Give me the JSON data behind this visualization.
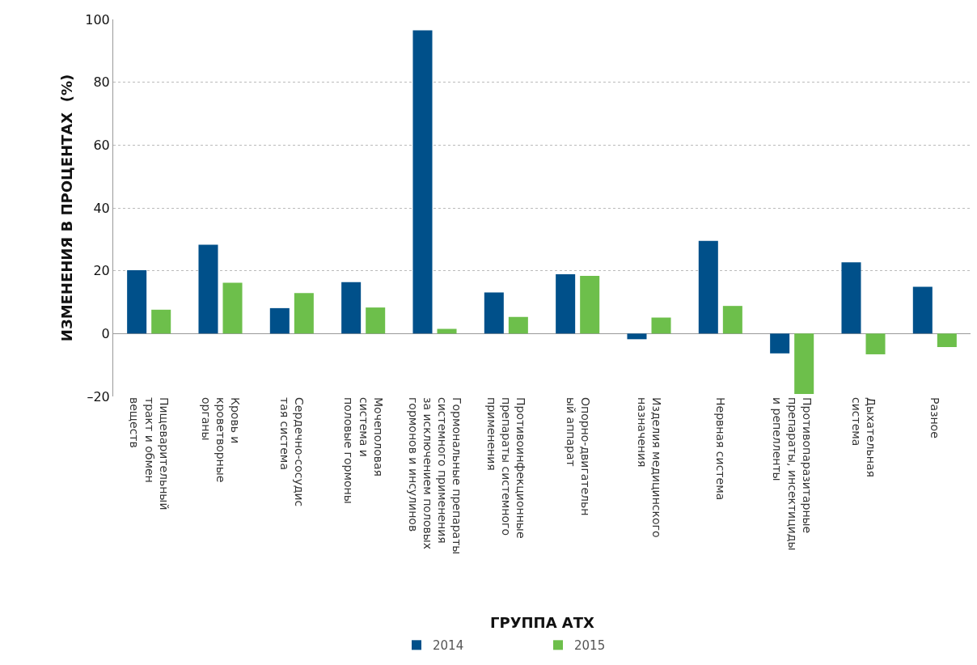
{
  "chart_data": {
    "type": "bar",
    "xlabel": "ГРУППА АТХ",
    "ylabel": "ИЗМЕНЕНИЯ В ПРОЦЕНТАХ  (%)",
    "categories": [
      "Пищеварительный\nтракт и обмен\nвеществ",
      "Кровь и\nкроветворные\nорганы",
      "Сердечно-сосудис\nтая система",
      "Мочеполовая\nсистема и\nполовые гормоны",
      "Гормональные препараты\nсистемного применения\nза исключением половых\nгормонов и инсулинов",
      "Противоинфекционные\nпрепараты системного\nприменения",
      "Опорно-двигательн\nый аппарат",
      "Изделия медицинского\nназначения",
      "Нервная система",
      "Противопаразитарные\nпрепараты, инсектициды\nи репелленты",
      "Дыхательная\nсистема",
      "Разное"
    ],
    "series": [
      {
        "name": "2014",
        "color": "#00508a",
        "values": [
          20.2,
          28.3,
          8.1,
          16.4,
          96.5,
          13.1,
          18.9,
          -1.8,
          29.5,
          -6.3,
          22.7,
          14.9
        ]
      },
      {
        "name": "2015",
        "color": "#6dbf4b",
        "values": [
          7.6,
          16.2,
          12.9,
          8.3,
          1.5,
          5.3,
          18.4,
          5.1,
          8.8,
          -19.2,
          -6.6,
          -4.3
        ]
      }
    ],
    "ylim": [
      -20,
      100
    ],
    "yticks": [
      {
        "value": -20,
        "label": "–20"
      },
      0,
      20,
      40,
      60,
      80,
      100
    ],
    "grid": "y",
    "legend": "bottom"
  }
}
